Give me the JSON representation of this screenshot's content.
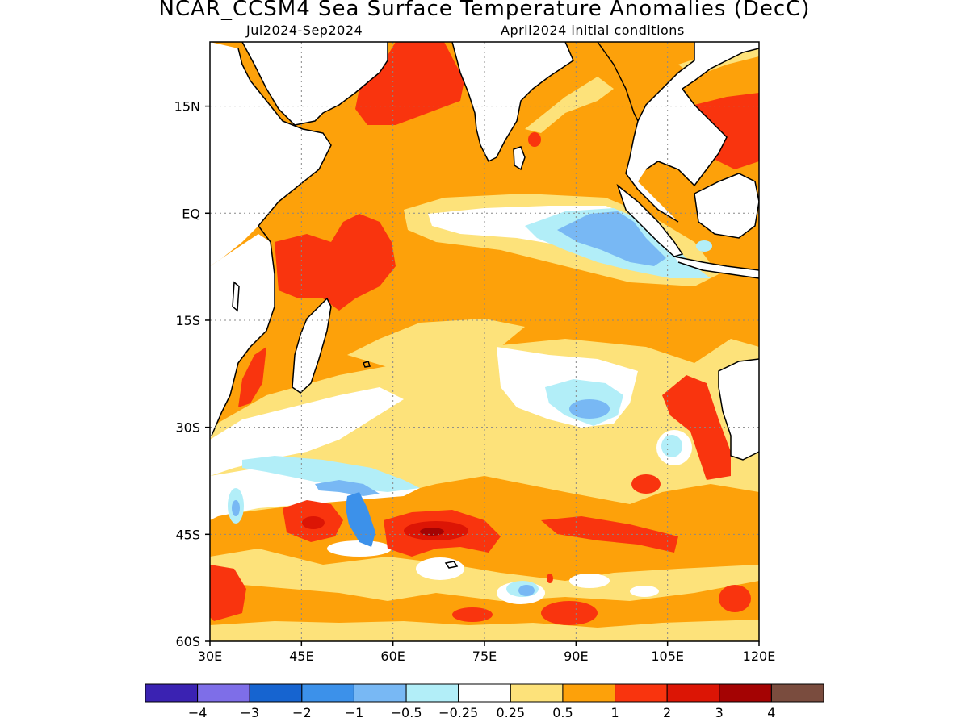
{
  "title": "NCAR_CCSM4 Sea Surface Temperature Anomalies (DecC)",
  "subtitle_left": "Jul2024-Sep2024",
  "subtitle_right": "April2024 initial conditions",
  "map": {
    "lon_range": [
      30,
      120
    ],
    "lat_range": [
      -60,
      24
    ],
    "lon_ticks": [
      {
        "value": 30,
        "label": "30E"
      },
      {
        "value": 45,
        "label": "45E"
      },
      {
        "value": 60,
        "label": "60E"
      },
      {
        "value": 75,
        "label": "75E"
      },
      {
        "value": 90,
        "label": "90E"
      },
      {
        "value": 105,
        "label": "105E"
      },
      {
        "value": 120,
        "label": "120E"
      }
    ],
    "lat_ticks": [
      {
        "value": 15,
        "label": "15N"
      },
      {
        "value": 0,
        "label": "EQ"
      },
      {
        "value": -15,
        "label": "15S"
      },
      {
        "value": -30,
        "label": "30S"
      },
      {
        "value": -45,
        "label": "45S"
      },
      {
        "value": -60,
        "label": "60S"
      }
    ],
    "grid": true
  },
  "colorbar": {
    "colors": [
      "#3a22b2",
      "#7e6ee8",
      "#1664d0",
      "#3c91ea",
      "#78b8f4",
      "#b2eef8",
      "#ffffff",
      "#fde27a",
      "#fda10a",
      "#f9340e",
      "#dc1505",
      "#a40303",
      "#7a4c3e"
    ],
    "labels": [
      "−4",
      "−3",
      "−2",
      "−1",
      "−0.5",
      "−0.25",
      "0.25",
      "0.5",
      "1",
      "2",
      "3",
      "4"
    ]
  },
  "palette": {
    "white": "#ffffff",
    "pale_cyan": "#b2eef8",
    "light_blue": "#78b8f4",
    "blue": "#3c91ea",
    "yellow": "#fde27a",
    "orange": "#fda10a",
    "red_orange": "#f9340e",
    "red": "#dc1505",
    "dark_red": "#a40303",
    "land": "#ffffff",
    "coast": "#000000"
  }
}
